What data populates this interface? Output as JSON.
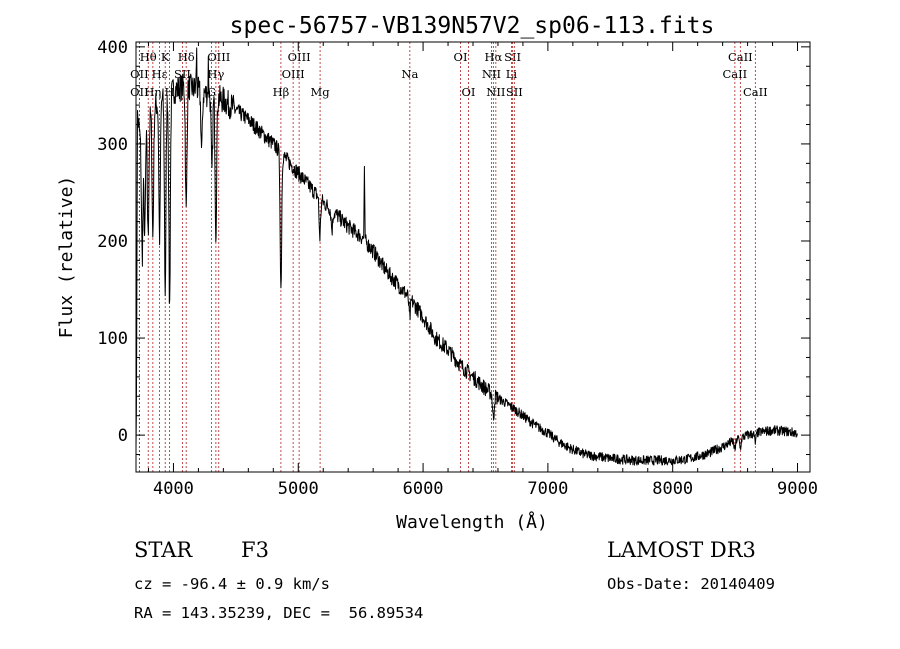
{
  "chart_data": {
    "type": "line",
    "title": "spec-56757-VB139N57V2_sp06-113.fits",
    "xlabel": "Wavelength (Å)",
    "ylabel": "Flux (relative)",
    "xlim": [
      3700,
      9100
    ],
    "ylim": [
      -38,
      405
    ],
    "xticks": [
      4000,
      5000,
      6000,
      7000,
      8000,
      9000
    ],
    "yticks": [
      0,
      100,
      200,
      300,
      400
    ],
    "line_color": "#000000",
    "marker_color": "#b22222",
    "spectrum_anchors": [
      [
        3700,
        0
      ],
      [
        3710,
        330
      ],
      [
        3740,
        300
      ],
      [
        3780,
        320
      ],
      [
        3820,
        330
      ],
      [
        3860,
        340
      ],
      [
        3900,
        345
      ],
      [
        3950,
        350
      ],
      [
        4000,
        355
      ],
      [
        4100,
        360
      ],
      [
        4200,
        355
      ],
      [
        4300,
        350
      ],
      [
        4400,
        345
      ],
      [
        4500,
        335
      ],
      [
        4600,
        325
      ],
      [
        4700,
        312
      ],
      [
        4800,
        300
      ],
      [
        4900,
        285
      ],
      [
        5000,
        270
      ],
      [
        5100,
        255
      ],
      [
        5200,
        240
      ],
      [
        5300,
        228
      ],
      [
        5400,
        215
      ],
      [
        5500,
        205
      ],
      [
        5600,
        190
      ],
      [
        5700,
        170
      ],
      [
        5800,
        155
      ],
      [
        5900,
        140
      ],
      [
        6000,
        122
      ],
      [
        6100,
        100
      ],
      [
        6200,
        88
      ],
      [
        6300,
        72
      ],
      [
        6400,
        60
      ],
      [
        6500,
        48
      ],
      [
        6600,
        38
      ],
      [
        6700,
        30
      ],
      [
        6800,
        20
      ],
      [
        6900,
        10
      ],
      [
        7000,
        2
      ],
      [
        7100,
        -8
      ],
      [
        7200,
        -15
      ],
      [
        7300,
        -20
      ],
      [
        7400,
        -22
      ],
      [
        7500,
        -24
      ],
      [
        7600,
        -25
      ],
      [
        7700,
        -26
      ],
      [
        7800,
        -26
      ],
      [
        7900,
        -26
      ],
      [
        8000,
        -26
      ],
      [
        8100,
        -25
      ],
      [
        8200,
        -22
      ],
      [
        8300,
        -18
      ],
      [
        8400,
        -12
      ],
      [
        8500,
        -5
      ],
      [
        8600,
        0
      ],
      [
        8700,
        3
      ],
      [
        8800,
        5
      ],
      [
        8900,
        4
      ],
      [
        9000,
        2
      ]
    ],
    "absorption_dips": [
      [
        3750,
        120
      ],
      [
        3770,
        110
      ],
      [
        3797,
        120
      ],
      [
        3835,
        130
      ],
      [
        3889,
        140
      ],
      [
        3934,
        200
      ],
      [
        3969,
        220
      ],
      [
        4102,
        130
      ],
      [
        4226,
        60
      ],
      [
        4308,
        80
      ],
      [
        4340,
        140
      ],
      [
        4861,
        140
      ],
      [
        5173,
        40
      ],
      [
        5270,
        20
      ],
      [
        5893,
        20
      ],
      [
        6563,
        25
      ],
      [
        8498,
        10
      ],
      [
        8542,
        10
      ],
      [
        8662,
        10
      ]
    ],
    "emission_spikes": [
      [
        5530,
        70
      ],
      [
        4185,
        40
      ],
      [
        4280,
        35
      ]
    ],
    "line_markers": [
      {
        "label": "Hθ",
        "x": 3798,
        "row": 1
      },
      {
        "label": "OII",
        "x": 3727,
        "row": 2
      },
      {
        "label": "Hε",
        "x": 3889,
        "row": 2
      },
      {
        "label": "OII",
        "x": 3727,
        "row": 3
      },
      {
        "label": "Hη",
        "x": 3835,
        "row": 3
      },
      {
        "label": "K",
        "x": 3934,
        "row": 1
      },
      {
        "label": "H",
        "x": 3969,
        "row": 3
      },
      {
        "label": "Hδ",
        "x": 4102,
        "row": 1
      },
      {
        "label": "SII",
        "x": 4072,
        "row": 2
      },
      {
        "label": "OIII",
        "x": 4363,
        "row": 1
      },
      {
        "label": "Hγ",
        "x": 4340,
        "row": 2
      },
      {
        "label": "G",
        "x": 4305,
        "row": 3
      },
      {
        "label": "OIII",
        "x": 5007,
        "row": 1
      },
      {
        "label": "OIII",
        "x": 4959,
        "row": 2
      },
      {
        "label": "Hβ",
        "x": 4861,
        "row": 3
      },
      {
        "label": "Mg",
        "x": 5175,
        "row": 3
      },
      {
        "label": "Na",
        "x": 5894,
        "row": 2
      },
      {
        "label": "OI",
        "x": 6300,
        "row": 1
      },
      {
        "label": "OI",
        "x": 6364,
        "row": 3
      },
      {
        "label": "Hα",
        "x": 6563,
        "row": 1
      },
      {
        "label": "SII",
        "x": 6717,
        "row": 1
      },
      {
        "label": "NII",
        "x": 6548,
        "row": 2
      },
      {
        "label": "Li",
        "x": 6708,
        "row": 2
      },
      {
        "label": "NII",
        "x": 6583,
        "row": 3
      },
      {
        "label": "SII",
        "x": 6731,
        "row": 3
      },
      {
        "label": "CaII",
        "x": 8542,
        "row": 1
      },
      {
        "label": "CaII",
        "x": 8498,
        "row": 2
      },
      {
        "label": "CaII",
        "x": 8662,
        "row": 3
      }
    ]
  },
  "info": {
    "object_type": "STAR",
    "subclass": "F3",
    "survey": "LAMOST DR3",
    "redshift": "cz = -96.4 ± 0.9 km/s",
    "obs_date": "Obs-Date: 20140409",
    "coords": "RA = 143.35239, DEC =  56.89534"
  }
}
